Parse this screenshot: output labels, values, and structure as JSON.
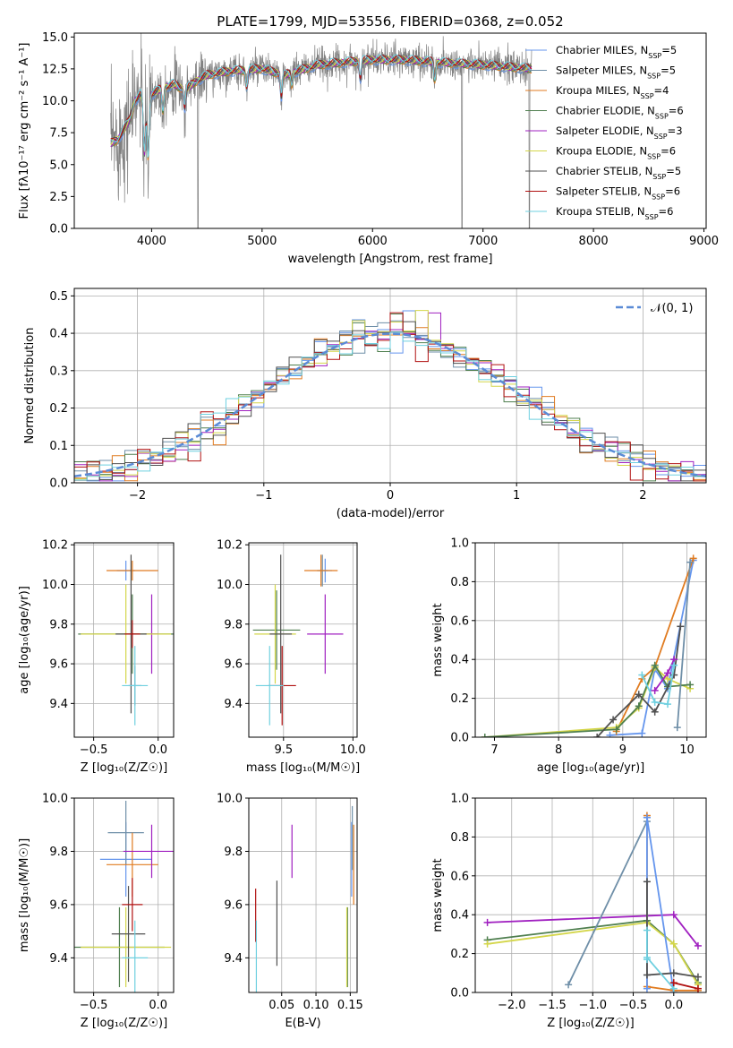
{
  "figure": {
    "title": "PLATE=1799, MJD=53556, FIBERID=0368, z=0.052"
  },
  "models": [
    {
      "name": "Chabrier MILES",
      "nssp": 5,
      "color": "#6495ed"
    },
    {
      "name": "Salpeter MILES",
      "nssp": 5,
      "color": "#6f8fa8"
    },
    {
      "name": "Kroupa MILES",
      "nssp": 4,
      "color": "#e07b20"
    },
    {
      "name": "Chabrier ELODIE",
      "nssp": 6,
      "color": "#4f7f4f"
    },
    {
      "name": "Salpeter ELODIE",
      "nssp": 3,
      "color": "#a020c0"
    },
    {
      "name": "Kroupa ELODIE",
      "nssp": 6,
      "color": "#d4d64a"
    },
    {
      "name": "Chabrier STELIB",
      "nssp": 5,
      "color": "#505050"
    },
    {
      "name": "Salpeter STELIB",
      "nssp": 6,
      "color": "#b01010"
    },
    {
      "name": "Kroupa STELIB",
      "nssp": 6,
      "color": "#6fd0e0"
    }
  ],
  "chart_data": [
    {
      "id": "spectrum",
      "type": "line",
      "xlabel": "wavelength [Angstrom, rest frame]",
      "ylabel": "Flux [fλ10⁻¹⁷ erg cm⁻² s⁻¹ A⁻¹]",
      "xlim": [
        3300,
        9020
      ],
      "ylim": [
        0,
        15.3
      ],
      "xticks": [
        4000,
        5000,
        6000,
        7000,
        8000,
        9000
      ],
      "yticks": [
        0.0,
        2.5,
        5.0,
        7.5,
        10.0,
        12.5,
        15.0
      ],
      "ytick_labels": [
        "0.0",
        "2.5",
        "5.0",
        "7.5",
        "10.0",
        "12.5",
        "15.0"
      ],
      "legend": "right",
      "data_color": "#808080",
      "data_range": [
        3630,
        7440
      ],
      "continuum": [
        [
          3600,
          6.5
        ],
        [
          3700,
          7.0
        ],
        [
          3800,
          8.5
        ],
        [
          3850,
          10.0
        ],
        [
          3900,
          10.5
        ],
        [
          3950,
          9.0
        ],
        [
          4000,
          10.5
        ],
        [
          4100,
          11.0
        ],
        [
          4200,
          11.3
        ],
        [
          4300,
          10.8
        ],
        [
          4400,
          11.5
        ],
        [
          4500,
          12.0
        ],
        [
          4700,
          12.3
        ],
        [
          5000,
          12.5
        ],
        [
          5200,
          12.0
        ],
        [
          5500,
          12.8
        ],
        [
          6000,
          13.2
        ],
        [
          6300,
          13.2
        ],
        [
          6600,
          13.0
        ],
        [
          7000,
          12.8
        ],
        [
          7440,
          12.5
        ]
      ],
      "absorption_lines": [
        [
          3934,
          4.0
        ],
        [
          3969,
          4.5
        ],
        [
          4102,
          2.0
        ],
        [
          4300,
          1.5
        ],
        [
          4861,
          1.5
        ],
        [
          5175,
          2.0
        ],
        [
          5270,
          1.0
        ],
        [
          5890,
          1.5
        ],
        [
          6563,
          1.5
        ]
      ],
      "bad_pixels": [
        [
          4420,
          0.0
        ],
        [
          6810,
          0.0
        ],
        [
          7420,
          0.0
        ]
      ]
    },
    {
      "id": "residuals",
      "type": "histogram",
      "xlabel": "(data-model)/error",
      "ylabel": "Normed distribution",
      "xlim": [
        -2.5,
        2.5
      ],
      "ylim": [
        0,
        0.52
      ],
      "xticks": [
        -2,
        -1,
        0,
        1,
        2
      ],
      "xtick_labels": [
        "−2",
        "−1",
        "0",
        "1",
        "2"
      ],
      "yticks": [
        0.0,
        0.1,
        0.2,
        0.3,
        0.4,
        0.5
      ],
      "ytick_labels": [
        "0.0",
        "0.1",
        "0.2",
        "0.3",
        "0.4",
        "0.5"
      ],
      "bin_width": 0.1,
      "reference": {
        "name": "𝒩(0, 1)",
        "color": "#5b8bd6"
      },
      "hist_peaks": [
        0.46,
        0.45,
        0.43,
        0.44,
        0.5,
        0.43,
        0.47,
        0.44,
        0.45
      ]
    },
    {
      "id": "age-vs-Z",
      "type": "errorbar",
      "xlabel": "Z [log₁₀(Z/Z☉)]",
      "ylabel": "age  [log₁₀(age/yr)]",
      "xlim": [
        -0.65,
        0.12
      ],
      "ylim": [
        9.23,
        10.21
      ],
      "xticks": [
        -0.5,
        0.0
      ],
      "xtick_labels": [
        "−0.5",
        "0.0"
      ],
      "yticks": [
        9.4,
        9.6,
        9.8,
        10.0,
        10.2
      ],
      "ytick_labels": [
        "9.4",
        "9.6",
        "9.8",
        "10.0",
        "10.2"
      ],
      "points": [
        {
          "m": 0,
          "x": -0.25,
          "y": 10.07,
          "xerr": 0.07,
          "yerr": 0.05
        },
        {
          "m": 1,
          "x": -0.18,
          "y": 9.49,
          "xerr": 0.05,
          "yerr": 0.1
        },
        {
          "m": 2,
          "x": -0.2,
          "y": 10.07,
          "xerr": 0.2,
          "yerr": 0.05
        },
        {
          "m": 3,
          "x": -0.2,
          "y": 9.75,
          "xerr": 0.42,
          "yerr": 0.2
        },
        {
          "m": 4,
          "x": -0.05,
          "y": 9.75,
          "xerr": 0.05,
          "yerr": 0.2
        },
        {
          "m": 5,
          "x": -0.25,
          "y": 9.75,
          "xerr": 0.35,
          "yerr": 0.25
        },
        {
          "m": 6,
          "x": -0.21,
          "y": 9.75,
          "xerr": 0.12,
          "yerr": 0.4
        },
        {
          "m": 7,
          "x": -0.2,
          "y": 9.75,
          "xerr": 0.06,
          "yerr": 0.07
        },
        {
          "m": 8,
          "x": -0.18,
          "y": 9.49,
          "xerr": 0.1,
          "yerr": 0.2
        }
      ]
    },
    {
      "id": "age-vs-mass",
      "type": "errorbar",
      "xlabel": "mass [log₁₀(M/M☉)]",
      "ylabel": "",
      "xlim": [
        9.25,
        10.03
      ],
      "ylim": [
        9.23,
        10.21
      ],
      "xticks": [
        9.5,
        10.0
      ],
      "xtick_labels": [
        "9.5",
        "10.0"
      ],
      "yticks": [
        9.4,
        9.6,
        9.8,
        10.0,
        10.2
      ],
      "ytick_labels": [
        "9.4",
        "9.6",
        "9.8",
        "10.0",
        "10.2"
      ],
      "points": [
        {
          "m": 0,
          "x": 9.8,
          "y": 10.07,
          "xerr": 0.05,
          "yerr": 0.06
        },
        {
          "m": 1,
          "x": 9.78,
          "y": 10.07,
          "xerr": 0.04,
          "yerr": 0.08
        },
        {
          "m": 2,
          "x": 9.77,
          "y": 10.07,
          "xerr": 0.12,
          "yerr": 0.08
        },
        {
          "m": 3,
          "x": 9.45,
          "y": 9.77,
          "xerr": 0.17,
          "yerr": 0.2
        },
        {
          "m": 4,
          "x": 9.8,
          "y": 9.75,
          "xerr": 0.13,
          "yerr": 0.2
        },
        {
          "m": 5,
          "x": 9.44,
          "y": 9.75,
          "xerr": 0.15,
          "yerr": 0.25
        },
        {
          "m": 6,
          "x": 9.48,
          "y": 9.75,
          "xerr": 0.08,
          "yerr": 0.4
        },
        {
          "m": 7,
          "x": 9.49,
          "y": 9.49,
          "xerr": 0.1,
          "yerr": 0.2
        },
        {
          "m": 8,
          "x": 9.4,
          "y": 9.49,
          "xerr": 0.1,
          "yerr": 0.2
        }
      ]
    },
    {
      "id": "weight-vs-age",
      "type": "line",
      "xlabel": "age  [log₁₀(age/yr)]",
      "ylabel": "mass weight",
      "xlim": [
        6.7,
        10.3
      ],
      "ylim": [
        0,
        1.0
      ],
      "xticks": [
        7,
        8,
        9,
        10
      ],
      "xtick_labels": [
        "7",
        "8",
        "9",
        "10"
      ],
      "yticks": [
        0.0,
        0.2,
        0.4,
        0.6,
        0.8,
        1.0
      ],
      "ytick_labels": [
        "0.0",
        "0.2",
        "0.4",
        "0.6",
        "0.8",
        "1.0"
      ],
      "series": [
        {
          "m": 0,
          "x": [
            8.8,
            9.3,
            9.5,
            9.7,
            10.1
          ],
          "y": [
            0.01,
            0.02,
            0.35,
            0.25,
            0.91
          ]
        },
        {
          "m": 2,
          "x": [
            8.9,
            9.3,
            9.5,
            10.1
          ],
          "y": [
            0.03,
            0.3,
            0.36,
            0.92
          ]
        },
        {
          "m": 5,
          "x": [
            6.85,
            8.9,
            9.25,
            9.5,
            9.7,
            10.05
          ],
          "y": [
            0.0,
            0.05,
            0.15,
            0.36,
            0.3,
            0.25
          ]
        },
        {
          "m": 3,
          "x": [
            6.85,
            8.9,
            9.25,
            9.5,
            9.7,
            10.05
          ],
          "y": [
            0.0,
            0.04,
            0.16,
            0.37,
            0.26,
            0.27
          ]
        },
        {
          "m": 6,
          "x": [
            8.6,
            8.85,
            9.25,
            9.5,
            9.8,
            9.9
          ],
          "y": [
            0.0,
            0.09,
            0.22,
            0.13,
            0.32,
            0.57
          ]
        },
        {
          "m": 4,
          "x": [
            9.5,
            9.7,
            9.8
          ],
          "y": [
            0.24,
            0.33,
            0.4
          ]
        },
        {
          "m": 8,
          "x": [
            9.3,
            9.5,
            9.7,
            9.8
          ],
          "y": [
            0.32,
            0.18,
            0.17,
            0.37
          ]
        },
        {
          "m": 1,
          "x": [
            9.85,
            10.05
          ],
          "y": [
            0.05,
            0.9
          ]
        }
      ]
    },
    {
      "id": "mass-vs-Z",
      "type": "errorbar",
      "xlabel": "Z [log₁₀(Z/Z☉)]",
      "ylabel": "mass [log₁₀(M/M☉)]",
      "xlim": [
        -0.65,
        0.12
      ],
      "ylim": [
        9.27,
        10.0
      ],
      "xticks": [
        -0.5,
        0.0
      ],
      "xtick_labels": [
        "−0.5",
        "0.0"
      ],
      "yticks": [
        9.4,
        9.6,
        9.8,
        10.0
      ],
      "ytick_labels": [
        "9.4",
        "9.6",
        "9.8",
        "10.0"
      ],
      "points": [
        {
          "m": 0,
          "x": -0.25,
          "y": 9.77,
          "xerr": 0.2,
          "yerr": 0.14
        },
        {
          "m": 1,
          "x": -0.25,
          "y": 9.87,
          "xerr": 0.14,
          "yerr": 0.12
        },
        {
          "m": 2,
          "x": -0.2,
          "y": 9.75,
          "xerr": 0.2,
          "yerr": 0.12
        },
        {
          "m": 3,
          "x": -0.3,
          "y": 9.44,
          "xerr": 0.35,
          "yerr": 0.15
        },
        {
          "m": 4,
          "x": -0.05,
          "y": 9.8,
          "xerr": 0.22,
          "yerr": 0.1
        },
        {
          "m": 5,
          "x": -0.25,
          "y": 9.44,
          "xerr": 0.35,
          "yerr": 0.15
        },
        {
          "m": 6,
          "x": -0.23,
          "y": 9.49,
          "xerr": 0.13,
          "yerr": 0.18
        },
        {
          "m": 7,
          "x": -0.2,
          "y": 9.6,
          "xerr": 0.08,
          "yerr": 0.1
        },
        {
          "m": 8,
          "x": -0.18,
          "y": 9.4,
          "xerr": 0.1,
          "yerr": 0.14
        }
      ]
    },
    {
      "id": "mass-vs-EBV",
      "type": "errorbar",
      "xlabel": "E(B-V)",
      "ylabel": "",
      "xlim": [
        0.002,
        0.16
      ],
      "ylim": [
        9.27,
        10.0
      ],
      "xticks": [
        0.05,
        0.1,
        0.15
      ],
      "xtick_labels": [
        "0.05",
        "0.10",
        "0.15"
      ],
      "yticks": [
        9.4,
        9.6,
        9.8,
        10.0
      ],
      "ytick_labels": [
        "9.4",
        "9.6",
        "9.8",
        "10.0"
      ],
      "points": [
        {
          "m": 0,
          "x": 0.152,
          "y": 9.77,
          "xerr": 0.0,
          "yerr": 0.14
        },
        {
          "m": 1,
          "x": 0.153,
          "y": 9.85,
          "xerr": 0.0,
          "yerr": 0.12
        },
        {
          "m": 2,
          "x": 0.155,
          "y": 9.75,
          "xerr": 0.0,
          "yerr": 0.15
        },
        {
          "m": 3,
          "x": 0.146,
          "y": 9.44,
          "xerr": 0.0,
          "yerr": 0.15
        },
        {
          "m": 4,
          "x": 0.065,
          "y": 9.8,
          "xerr": 0.0,
          "yerr": 0.1
        },
        {
          "m": 5,
          "x": 0.145,
          "y": 9.44,
          "xerr": 0.0,
          "yerr": 0.15
        },
        {
          "m": 6,
          "x": 0.043,
          "y": 9.53,
          "xerr": 0.0,
          "yerr": 0.16
        },
        {
          "m": 7,
          "x": 0.012,
          "y": 9.56,
          "xerr": 0.0,
          "yerr": 0.1
        },
        {
          "m": 8,
          "x": 0.013,
          "y": 9.4,
          "xerr": 0.0,
          "yerr": 0.14
        }
      ]
    },
    {
      "id": "weight-vs-Z",
      "type": "line",
      "xlabel": "Z [log₁₀(Z/Z☉)]",
      "ylabel": "mass weight",
      "xlim": [
        -2.45,
        0.4
      ],
      "ylim": [
        0,
        1.0
      ],
      "xticks": [
        -2.0,
        -1.5,
        -1.0,
        -0.5,
        0.0
      ],
      "xtick_labels": [
        "−2.0",
        "−1.5",
        "−1.0",
        "−0.5",
        "0.0"
      ],
      "yticks": [
        0.0,
        0.2,
        0.4,
        0.6,
        0.8,
        1.0
      ],
      "ytick_labels": [
        "0.0",
        "0.2",
        "0.4",
        "0.6",
        "0.8",
        "1.0"
      ],
      "series": [
        {
          "m": 4,
          "x": [
            -2.3,
            0.0,
            0.3
          ],
          "y": [
            0.36,
            0.4,
            0.24
          ]
        },
        {
          "m": 3,
          "x": [
            -2.3,
            -0.33,
            0.0,
            0.3
          ],
          "y": [
            0.27,
            0.37,
            0.25,
            0.05
          ]
        },
        {
          "m": 5,
          "x": [
            -2.3,
            -0.33,
            0.0,
            0.3
          ],
          "y": [
            0.25,
            0.36,
            0.25,
            0.04
          ]
        },
        {
          "m": 1,
          "x": [
            -1.3,
            -0.33,
            -0.33
          ],
          "y": [
            0.04,
            0.88,
            0.9
          ]
        },
        {
          "m": 2,
          "x": [
            -0.33,
            -0.33,
            0.0,
            0.3
          ],
          "y": [
            0.91,
            0.03,
            0.01,
            0.01
          ]
        },
        {
          "m": 0,
          "x": [
            -0.33,
            -0.33,
            0.0
          ],
          "y": [
            0.02,
            0.9,
            0.0
          ]
        },
        {
          "m": 6,
          "x": [
            -0.33,
            -0.33,
            0.0,
            0.3
          ],
          "y": [
            0.57,
            0.09,
            0.1,
            0.08
          ]
        },
        {
          "m": 8,
          "x": [
            -0.33,
            -0.33,
            -0.33,
            0.0
          ],
          "y": [
            0.32,
            0.17,
            0.18,
            0.02
          ]
        },
        {
          "m": 7,
          "x": [
            0.0,
            0.3
          ],
          "y": [
            0.05,
            0.02
          ]
        }
      ]
    }
  ]
}
